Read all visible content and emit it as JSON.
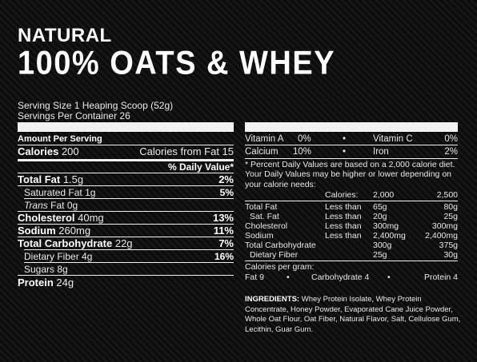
{
  "brand": {
    "line1": "NATURAL",
    "line2": "100% OATS & WHEY"
  },
  "serving": {
    "size": "Serving Size 1 Heaping Scoop (52g)",
    "per_container": "Servings Per Container 26"
  },
  "left": {
    "amount_per_serving": "Amount Per Serving",
    "calories_label": "Calories",
    "calories_value": "200",
    "calories_fat": "Calories from Fat 15",
    "dv_header": "% Daily Value*",
    "rows": [
      {
        "label": "Total Fat",
        "amount": "1.5g",
        "dv": "2%"
      },
      {
        "label": "Saturated Fat",
        "amount": "1g",
        "dv": "5%"
      },
      {
        "label_italic": "Trans",
        "label": " Fat",
        "amount": "0g",
        "dv": ""
      },
      {
        "label": "Cholesterol",
        "amount": "40mg",
        "dv": "13%"
      },
      {
        "label": "Sodium",
        "amount": "260mg",
        "dv": "11%"
      },
      {
        "label": "Total Carbohydrate",
        "amount": "22g",
        "dv": "7%"
      },
      {
        "label": "Dietary Fiber",
        "amount": "4g",
        "dv": "16%"
      },
      {
        "label": "Sugars",
        "amount": "8g",
        "dv": ""
      },
      {
        "label": "Protein",
        "amount": "24g",
        "dv": ""
      }
    ]
  },
  "right": {
    "vitamins": [
      {
        "a_label": "Vitamin A",
        "a_val": "0%",
        "dot": "•",
        "b_label": "Vitamin C",
        "b_val": "0%"
      },
      {
        "a_label": "Calcium",
        "a_val": "10%",
        "dot": "•",
        "b_label": "Iron",
        "b_val": "2%"
      }
    ],
    "footnote": "* Percent Daily Values are based on a 2,000 calorie diet. Your Daily Values may be higher or lower depending on your calorie needs:",
    "table_header": {
      "calories": "Calories:",
      "c1": "2,000",
      "c2": "2,500"
    },
    "table_rows": [
      {
        "label": "Total Fat",
        "cond": "Less than",
        "c1": "65g",
        "c2": "80g"
      },
      {
        "label": "Sat. Fat",
        "cond": "Less than",
        "c1": "20g",
        "c2": "25g"
      },
      {
        "label": "Cholesterol",
        "cond": "Less than",
        "c1": "300mg",
        "c2": "300mg"
      },
      {
        "label": "Sodium",
        "cond": "Less than",
        "c1": "2,400mg",
        "c2": "2,400mg"
      },
      {
        "label": "Total Carbohydrate",
        "cond": "",
        "c1": "300g",
        "c2": "375g"
      },
      {
        "label": "Dietary Fiber",
        "cond": "",
        "c1": "25g",
        "c2": "30g"
      }
    ],
    "per_gram_title": "Calories per gram:",
    "per_gram": {
      "fat": "Fat 9",
      "dot1": "•",
      "carb": "Carbohydrate 4",
      "dot2": "•",
      "protein": "Protein 4"
    }
  },
  "ingredients": {
    "label": "INGREDIENTS:",
    "text": " Whey Protein Isolate, Whey Protein Concentrate, Honey Powder, Evaporated Cane Juice Powder, Whole Oat Flour, Oat Fiber, Natural Flavor, Salt, Cellulose Gum, Lecithin, Guar Gum."
  }
}
